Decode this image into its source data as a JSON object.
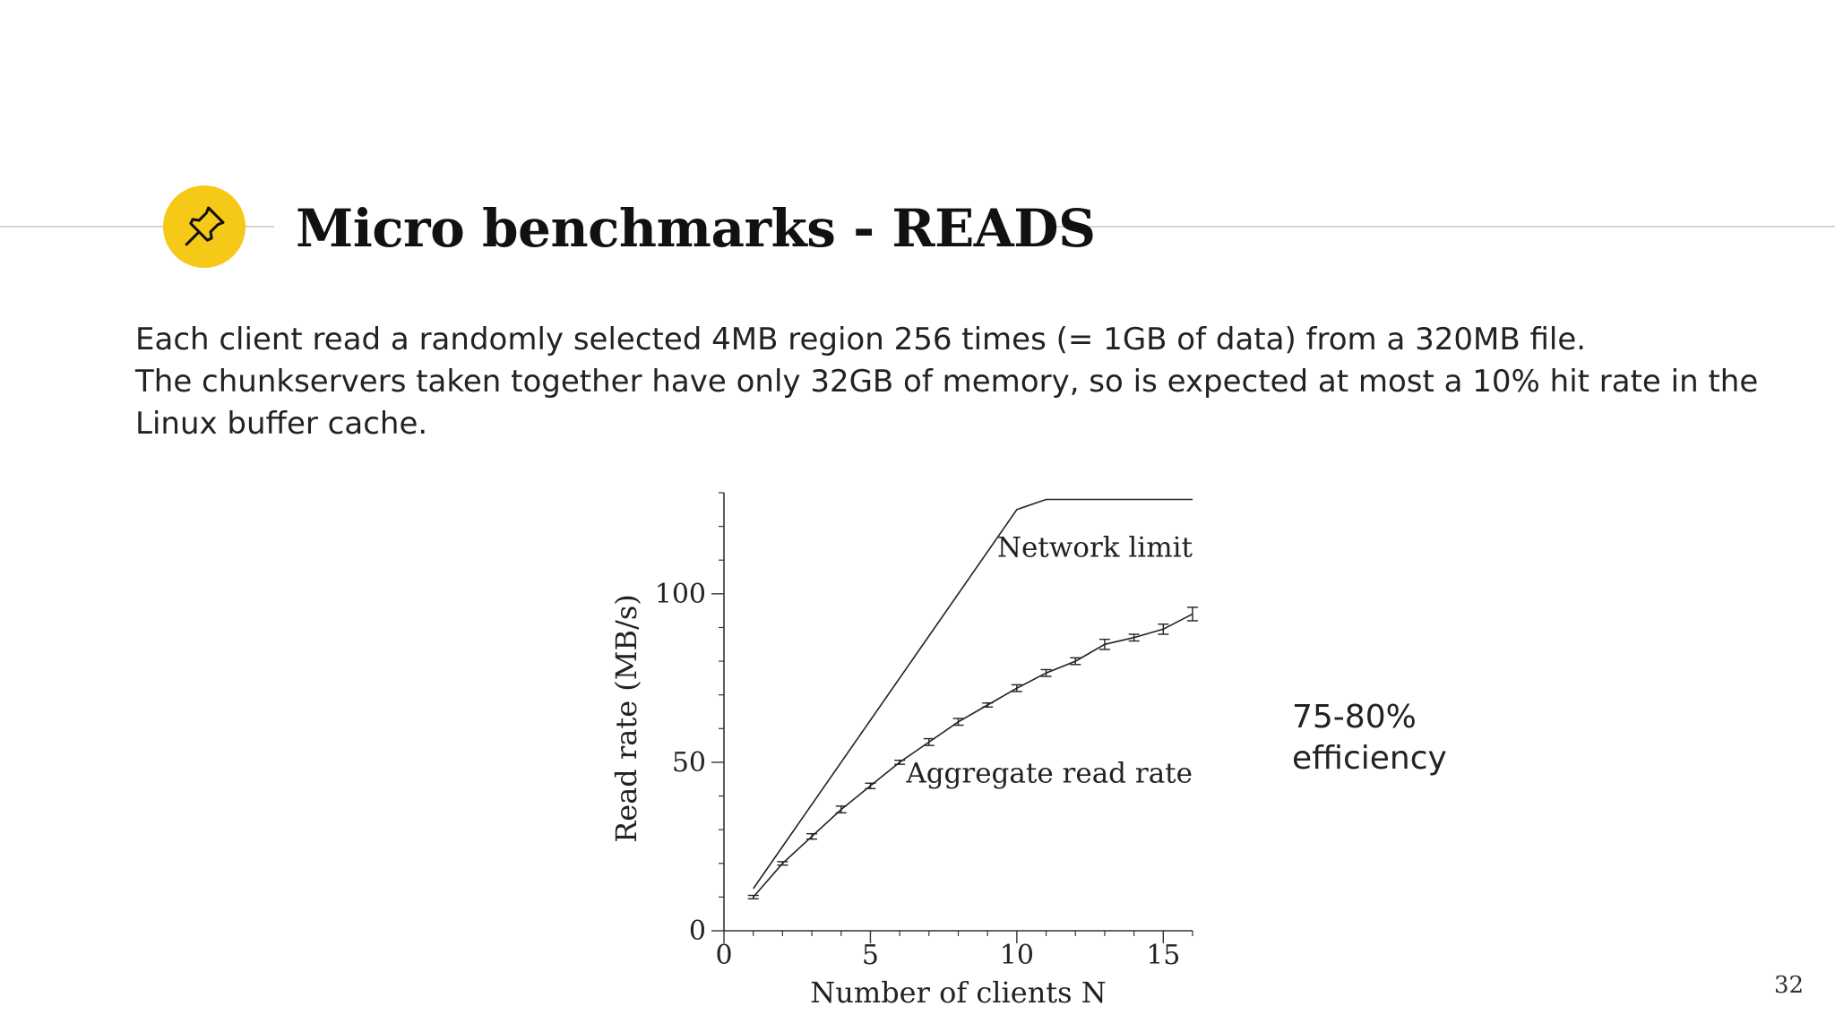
{
  "slide": {
    "title": "Micro benchmarks - READS",
    "pin_icon": "pushpin-icon",
    "accent_color": "#f6c918",
    "body_lines": [
      "Each client read a randomly selected 4MB region 256 times (= 1GB of data) from a 320MB file.",
      "The chunkservers taken together have only 32GB of memory, so is expected at most a 10% hit rate in the",
      "Linux buffer cache."
    ],
    "annotation_lines": [
      "75-80%",
      "efficiency"
    ],
    "page_number": "32"
  },
  "chart_data": {
    "type": "line",
    "title": "",
    "xlabel": "Number of clients N",
    "ylabel": "Read rate (MB/s)",
    "xlim": [
      0,
      16
    ],
    "ylim": [
      0,
      130
    ],
    "xticks": [
      0,
      5,
      10,
      15
    ],
    "yticks": [
      0,
      50,
      100
    ],
    "grid": false,
    "series": [
      {
        "name": "Network limit",
        "x": [
          1,
          10,
          11,
          16
        ],
        "y": [
          12.5,
          125,
          128,
          128
        ],
        "error_bars": false
      },
      {
        "name": "Aggregate read rate",
        "x": [
          1,
          2,
          3,
          4,
          5,
          6,
          7,
          8,
          9,
          10,
          11,
          12,
          13,
          14,
          15,
          16
        ],
        "y": [
          10,
          20,
          28,
          36,
          43,
          50,
          56,
          62,
          67,
          72,
          76.5,
          80,
          85,
          87,
          89.5,
          94
        ],
        "error": [
          0.5,
          0.5,
          0.8,
          1,
          0.8,
          0.6,
          1,
          1,
          0.6,
          1,
          1,
          1,
          1.5,
          1,
          1.5,
          2
        ],
        "error_bars": true
      }
    ]
  }
}
